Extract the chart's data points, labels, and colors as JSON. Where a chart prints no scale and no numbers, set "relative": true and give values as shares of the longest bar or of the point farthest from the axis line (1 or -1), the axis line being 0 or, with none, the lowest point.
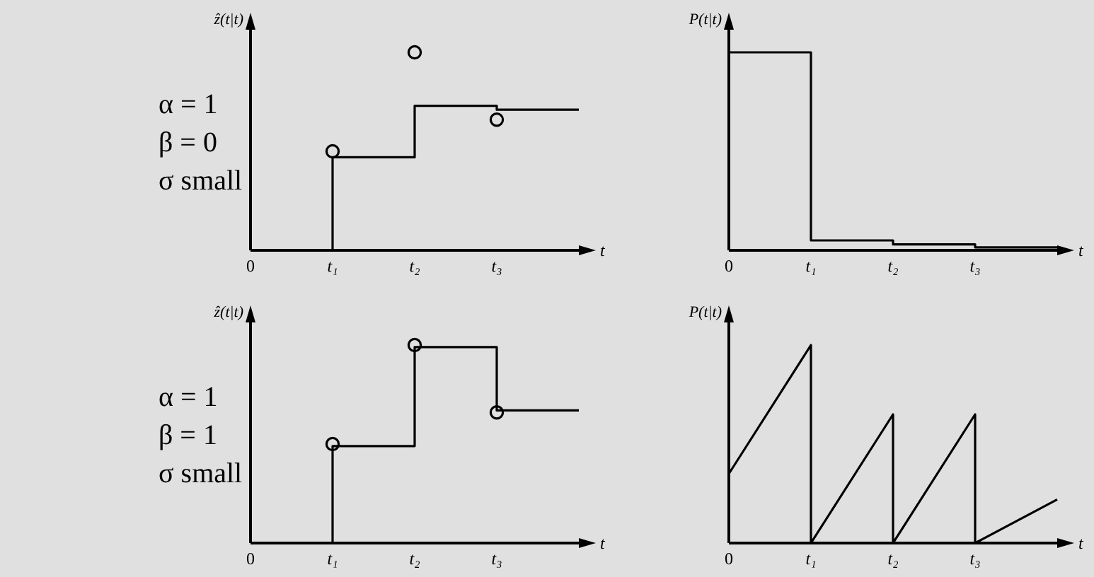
{
  "chart_data": [
    {
      "type": "line",
      "relative": true,
      "ylabel": "ẑ(t|t)",
      "xlabel": "t",
      "categories": [
        "0",
        "t₁",
        "t₂",
        "t₃",
        null
      ],
      "annotations": [
        "α = 1",
        "β = 0",
        "σ small"
      ],
      "series": [
        {
          "type": "line",
          "color": "#000000",
          "x": [
            "t₁",
            "t₁",
            "t₂",
            "t₂",
            "t₃",
            "t₃",
            null
          ],
          "values": [
            0,
            0.47,
            0.47,
            0.73,
            0.73,
            0.71,
            0.71
          ]
        },
        {
          "type": "scatter",
          "color": "#000000",
          "marker": "circle",
          "x": [
            "t₁",
            "t₂",
            "t₃"
          ],
          "values": [
            0.5,
            1,
            0.66
          ]
        }
      ]
    },
    {
      "type": "line",
      "relative": true,
      "ylabel": "P(t|t)",
      "xlabel": "t",
      "categories": [
        "0",
        "t₁",
        "t₂",
        "t₃",
        null
      ],
      "series": [
        {
          "type": "line",
          "color": "#000000",
          "x": [
            "0",
            "t₁",
            "t₁",
            "t₂",
            "t₂",
            "t₃",
            "t₃",
            null
          ],
          "values": [
            1,
            1,
            0.05,
            0.05,
            0.03,
            0.03,
            0.015,
            0.015
          ]
        }
      ]
    },
    {
      "type": "line",
      "relative": true,
      "ylabel": "ẑ(t|t)",
      "xlabel": "t",
      "categories": [
        "0",
        "t₁",
        "t₂",
        "t₃",
        null
      ],
      "annotations": [
        "α = 1",
        "β = 1",
        "σ small"
      ],
      "series": [
        {
          "type": "line",
          "color": "#000000",
          "x": [
            "t₁",
            "t₁",
            "t₂",
            "t₂",
            "t₃",
            "t₃",
            null
          ],
          "values": [
            0,
            0.49,
            0.49,
            0.99,
            0.99,
            0.67,
            0.67
          ]
        },
        {
          "type": "scatter",
          "color": "#000000",
          "marker": "circle",
          "x": [
            "t₁",
            "t₂",
            "t₃"
          ],
          "values": [
            0.5,
            1,
            0.66
          ]
        }
      ]
    },
    {
      "type": "line",
      "relative": true,
      "ylabel": "P(t|t)",
      "xlabel": "t",
      "categories": [
        "0",
        "t₁",
        "t₂",
        "t₃",
        null
      ],
      "series": [
        {
          "type": "line",
          "color": "#000000",
          "x": [
            "0",
            "t₁",
            "t₁",
            "t₂",
            "t₂",
            "t₃",
            "t₃",
            null
          ],
          "values": [
            0.35,
            1,
            0,
            0.65,
            0,
            0.65,
            0,
            0.22
          ]
        }
      ]
    }
  ]
}
